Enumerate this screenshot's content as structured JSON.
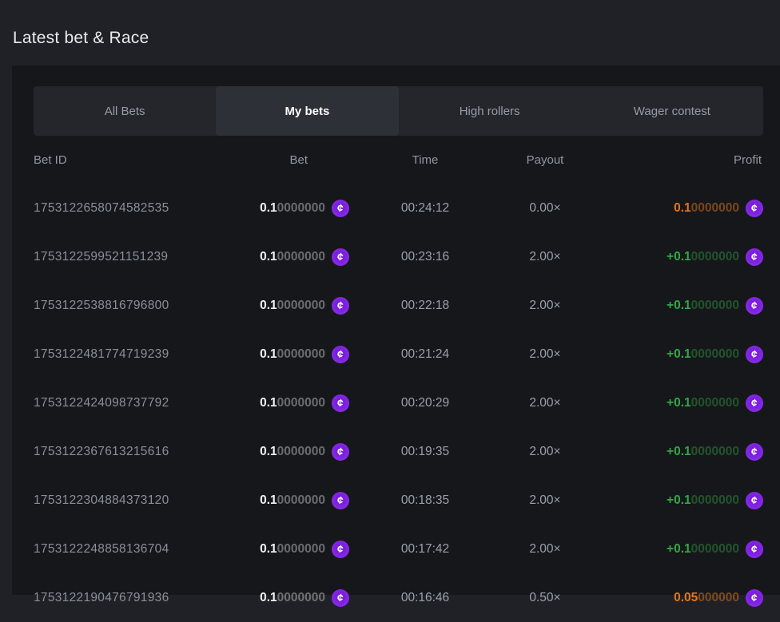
{
  "page": {
    "title": "Latest bet & Race"
  },
  "tabs": [
    {
      "label": "All Bets",
      "active": false
    },
    {
      "label": "My bets",
      "active": true
    },
    {
      "label": "High rollers",
      "active": false
    },
    {
      "label": "Wager contest",
      "active": false
    }
  ],
  "table": {
    "columns": [
      "Bet ID",
      "Bet",
      "Time",
      "Payout",
      "Profit"
    ],
    "currency_symbol": "¢",
    "colors": {
      "coin_purple": "#8b2be2",
      "profit_win_green": "#32a845",
      "profit_loss_orange": "#e2761c",
      "panel_bg": "#16171b",
      "tabs_bg": "#24262b",
      "active_tab_bg": "#2d3037"
    },
    "rows": [
      {
        "bet_id": "1753122658074582535",
        "bet_main": "0.1",
        "bet_rest": "0000000",
        "time": "00:24:12",
        "payout": "0.00×",
        "profit_main": "0.1",
        "profit_rest": "0000000",
        "profit_state": "loss"
      },
      {
        "bet_id": "1753122599521151239",
        "bet_main": "0.1",
        "bet_rest": "0000000",
        "time": "00:23:16",
        "payout": "2.00×",
        "profit_main": "+0.1",
        "profit_rest": "0000000",
        "profit_state": "win"
      },
      {
        "bet_id": "1753122538816796800",
        "bet_main": "0.1",
        "bet_rest": "0000000",
        "time": "00:22:18",
        "payout": "2.00×",
        "profit_main": "+0.1",
        "profit_rest": "0000000",
        "profit_state": "win"
      },
      {
        "bet_id": "1753122481774719239",
        "bet_main": "0.1",
        "bet_rest": "0000000",
        "time": "00:21:24",
        "payout": "2.00×",
        "profit_main": "+0.1",
        "profit_rest": "0000000",
        "profit_state": "win"
      },
      {
        "bet_id": "1753122424098737792",
        "bet_main": "0.1",
        "bet_rest": "0000000",
        "time": "00:20:29",
        "payout": "2.00×",
        "profit_main": "+0.1",
        "profit_rest": "0000000",
        "profit_state": "win"
      },
      {
        "bet_id": "1753122367613215616",
        "bet_main": "0.1",
        "bet_rest": "0000000",
        "time": "00:19:35",
        "payout": "2.00×",
        "profit_main": "+0.1",
        "profit_rest": "0000000",
        "profit_state": "win"
      },
      {
        "bet_id": "1753122304884373120",
        "bet_main": "0.1",
        "bet_rest": "0000000",
        "time": "00:18:35",
        "payout": "2.00×",
        "profit_main": "+0.1",
        "profit_rest": "0000000",
        "profit_state": "win"
      },
      {
        "bet_id": "1753122248858136704",
        "bet_main": "0.1",
        "bet_rest": "0000000",
        "time": "00:17:42",
        "payout": "2.00×",
        "profit_main": "+0.1",
        "profit_rest": "0000000",
        "profit_state": "win"
      },
      {
        "bet_id": "1753122190476791936",
        "bet_main": "0.1",
        "bet_rest": "0000000",
        "time": "00:16:46",
        "payout": "0.50×",
        "profit_main": "0.05",
        "profit_rest": "000000",
        "profit_state": "loss"
      }
    ]
  }
}
